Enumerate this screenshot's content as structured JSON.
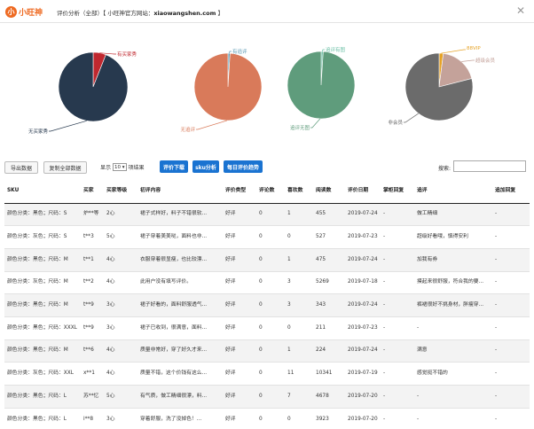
{
  "app": {
    "logo_glyph": "小",
    "logo_text": "小旺神",
    "title_prefix": "评价分析（全部）【 小旺神官方网站：",
    "title_site": "xiaowangshen.com",
    "title_suffix": " 】",
    "close_glyph": "✕"
  },
  "charts": {
    "chart_data": [
      {
        "type": "pie",
        "slices": [
          {
            "label": "有买家秀",
            "value": 6,
            "color": "#c0282f"
          },
          {
            "label": "无买家秀",
            "value": 94,
            "color": "#27394e"
          }
        ]
      },
      {
        "type": "pie",
        "slices": [
          {
            "label": "有追评",
            "value": 1,
            "color": "#5e9bb5"
          },
          {
            "label": "无追评",
            "value": 99,
            "color": "#d97a5a"
          }
        ]
      },
      {
        "type": "pie",
        "slices": [
          {
            "label": "追评有图",
            "value": 1,
            "color": "#6cc0a6"
          },
          {
            "label": "追评无图",
            "value": 99,
            "color": "#5f9c7c"
          }
        ]
      },
      {
        "type": "pie",
        "slices": [
          {
            "label": "88VIP",
            "value": 2,
            "color": "#e6a225"
          },
          {
            "label": "超级会员",
            "value": 19,
            "color": "#c4a29a"
          },
          {
            "label": "非会员",
            "value": 79,
            "color": "#6b6b6b"
          }
        ]
      }
    ]
  },
  "toolbar": {
    "export_label": "导出数据",
    "copy_all_label": "复制全部数据",
    "show_prefix": "显示",
    "page_size": "10",
    "show_suffix": "项结果",
    "review_download_label": "评价下载",
    "sku_analysis_label": "sku分析",
    "daily_trend_label": "每日评价趋势",
    "search_label": "搜索:"
  },
  "table": {
    "columns": [
      "SKU",
      "买家",
      "买家等级",
      "初评内容",
      "评价类型",
      "评论数",
      "喜欢数",
      "阅读数",
      "评价日期",
      "掌柜回复",
      "追评",
      "追加回复"
    ],
    "rows": [
      [
        "颜色分类：黑色；尺码：S",
        "炉**等",
        "2心",
        "裙子式样好，料子不错很软...",
        "好评",
        "0",
        "1",
        "455",
        "2019-07-24",
        "-",
        "做工精细",
        "-"
      ],
      [
        "颜色分类：灰色；尺码：S",
        "t**3",
        "5心",
        "裙子穿着美美哒，面料也非...",
        "好评",
        "0",
        "0",
        "527",
        "2019-07-23",
        "-",
        "超级好看哦，慎得安利",
        "-"
      ],
      [
        "颜色分类：黑色；尺码：M",
        "t**1",
        "4心",
        "衣服穿着很显瘦，也比较漂...",
        "好评",
        "0",
        "1",
        "475",
        "2019-07-24",
        "-",
        "加我有券",
        "-"
      ],
      [
        "颜色分类：灰色；尺码：M",
        "t**2",
        "4心",
        "此用户没有填写评价。",
        "好评",
        "0",
        "3",
        "5269",
        "2019-07-18",
        "-",
        "摸起来很舒服，符合我的要...",
        "-"
      ],
      [
        "颜色分类：黑色；尺码：M",
        "t**9",
        "3心",
        "裙子好看的，面料舒服透气...",
        "好评",
        "0",
        "3",
        "343",
        "2019-07-24",
        "-",
        "裤裙很好不挑身材，胖瘦穿...",
        "-"
      ],
      [
        "颜色分类：黑色；尺码：XXXL",
        "t**9",
        "3心",
        "裙子已收到，很满意，面料...",
        "好评",
        "0",
        "0",
        "211",
        "2019-07-23",
        "-",
        "-",
        "-"
      ],
      [
        "颜色分类：黑色；尺码：M",
        "t**6",
        "4心",
        "质量非常好，穿了好久才来...",
        "好评",
        "0",
        "1",
        "224",
        "2019-07-24",
        "-",
        "满意",
        "-"
      ],
      [
        "颜色分类：灰色；尺码：XXL",
        "x**1",
        "4心",
        "质量不错，这个价钱有这么...",
        "好评",
        "0",
        "11",
        "10341",
        "2019-07-19",
        "-",
        "感觉挺不错的",
        "-"
      ],
      [
        "颜色分类：黑色；尺码：L",
        "苏**忆",
        "5心",
        "有气质，做工精细很漂，料...",
        "好评",
        "0",
        "7",
        "4678",
        "2019-07-20",
        "-",
        "-",
        "-"
      ],
      [
        "颜色分类：黑色；尺码：L",
        "i**8",
        "3心",
        "穿着舒服，洗了没掉色！...",
        "好评",
        "0",
        "0",
        "3923",
        "2019-07-20",
        "-",
        "-",
        "-"
      ]
    ]
  }
}
